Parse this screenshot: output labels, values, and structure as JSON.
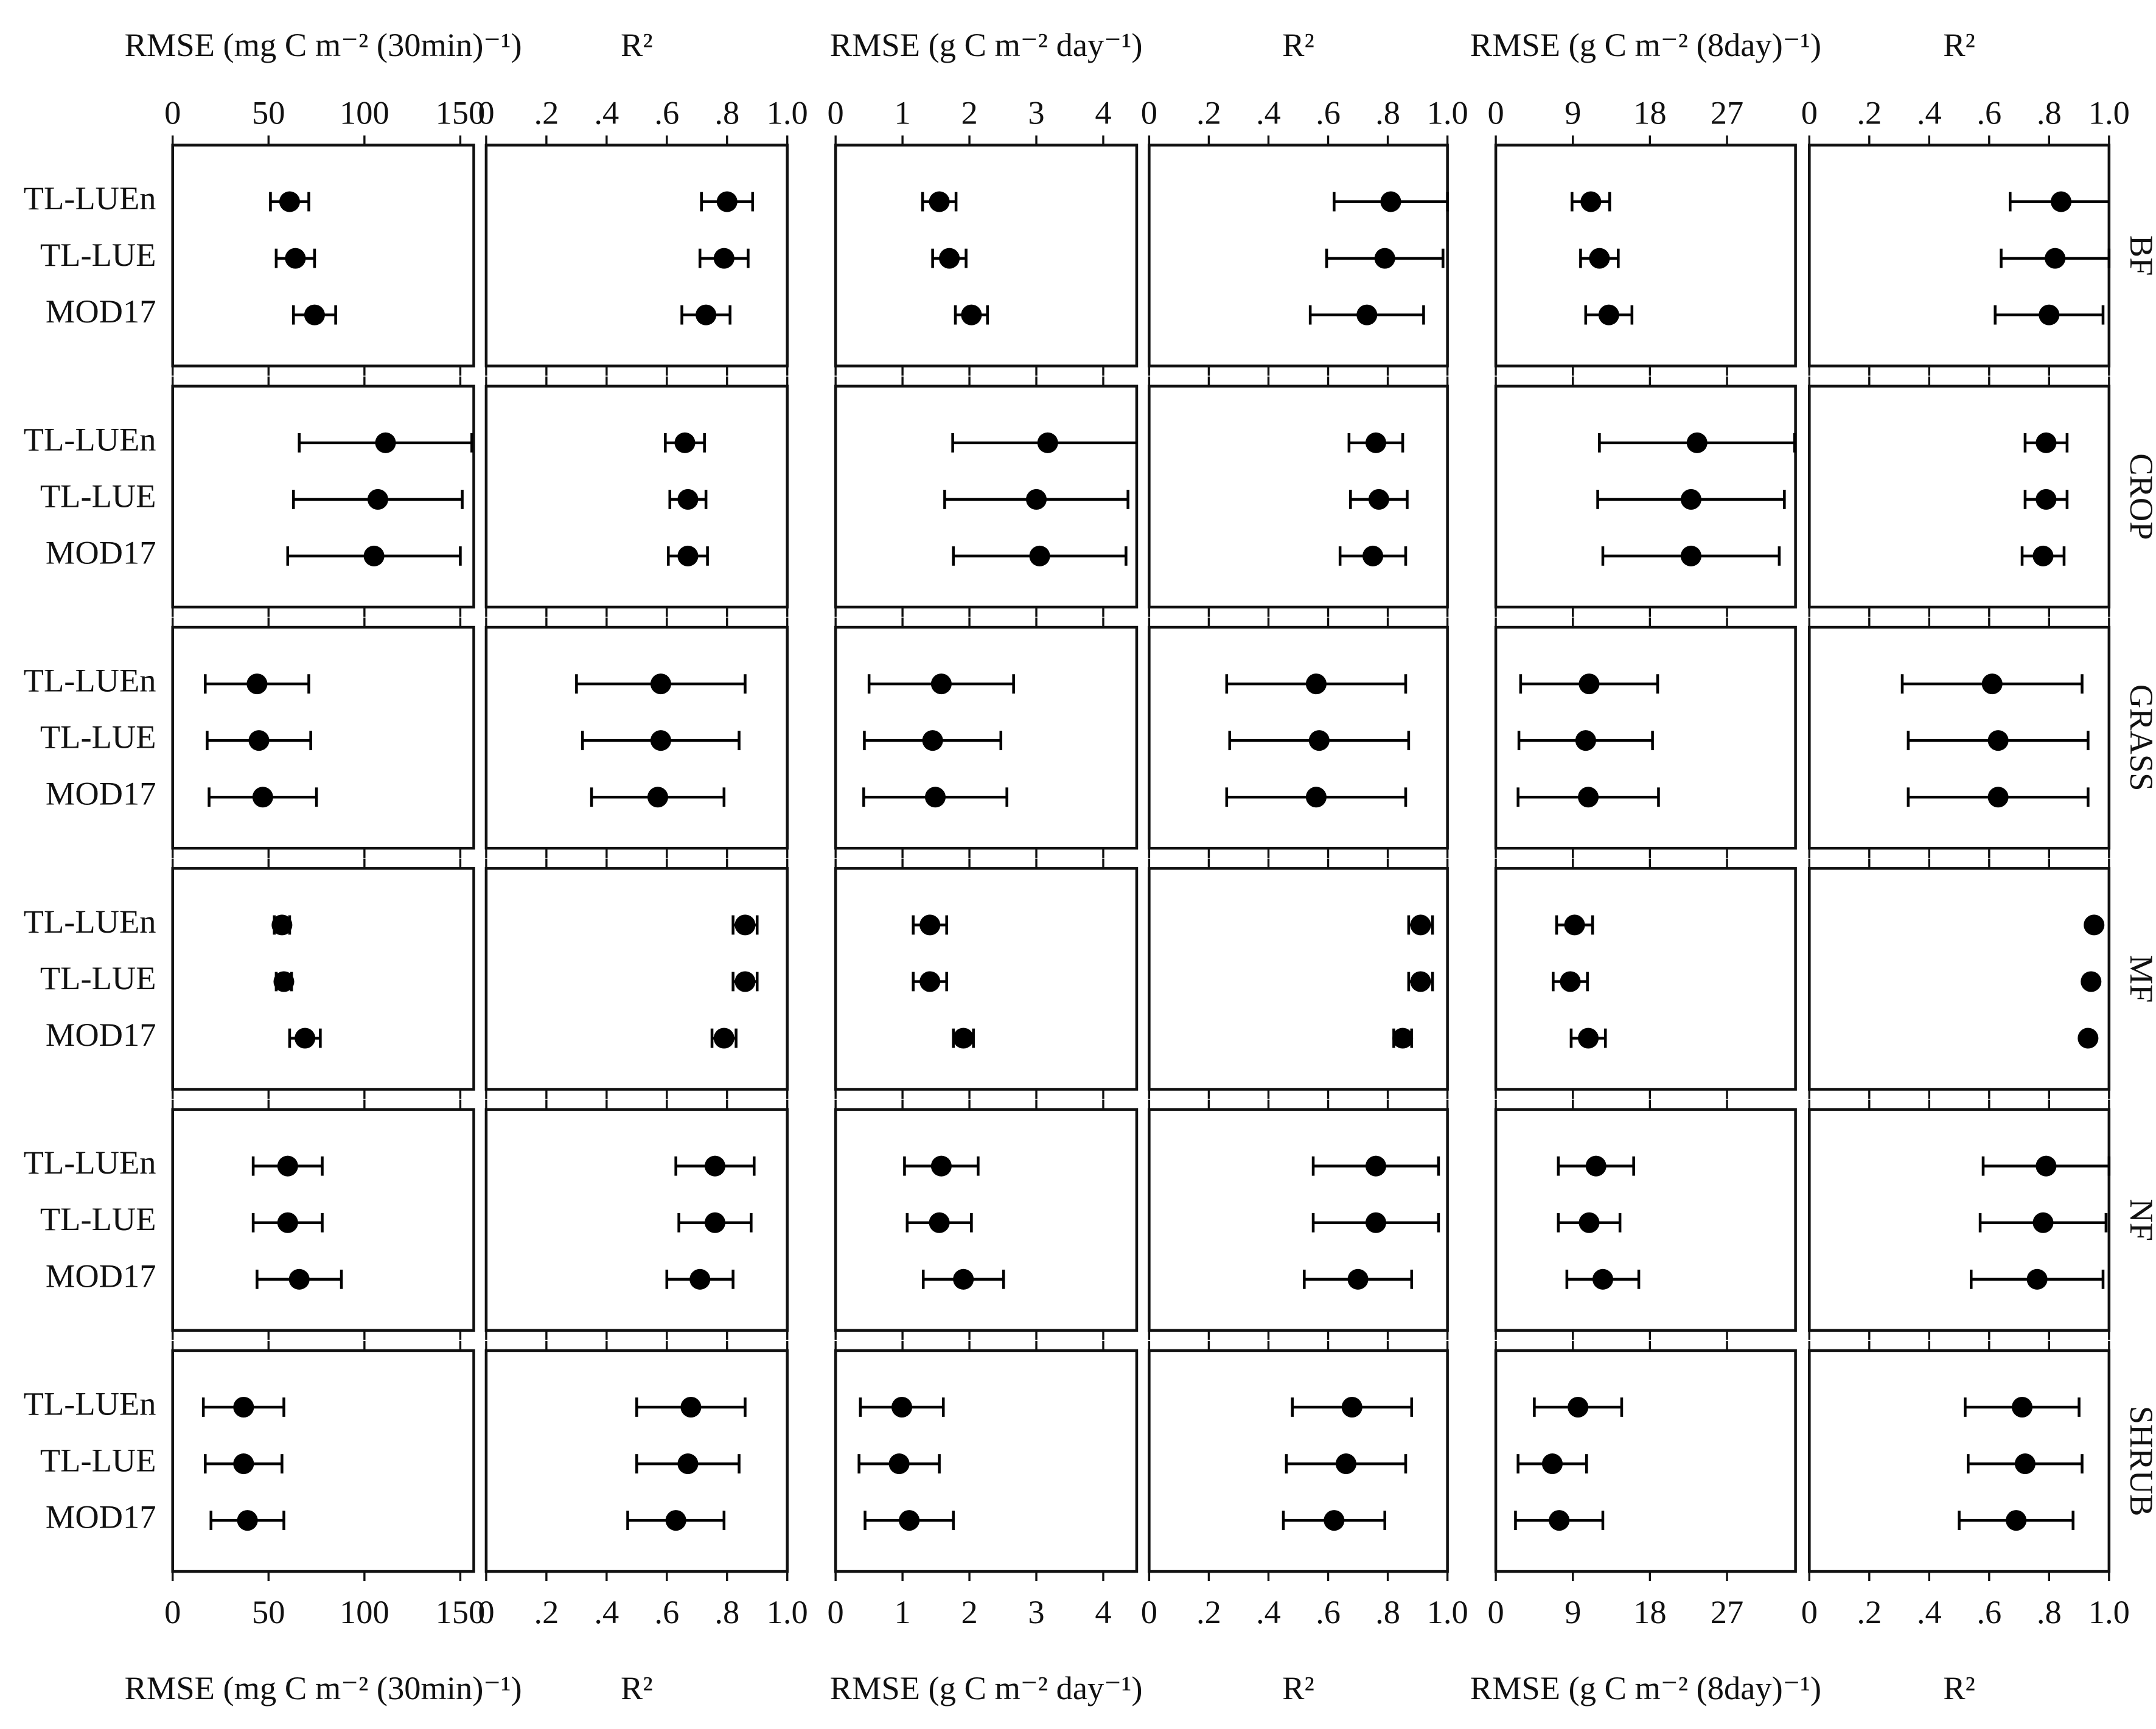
{
  "categories": [
    "TL-LUEn",
    "TL-LUE",
    "MOD17"
  ],
  "row_labels": [
    "BF",
    "CROP",
    "GRASS",
    "MF",
    "NF",
    "SHRUB"
  ],
  "chart_data": [
    {
      "type": "errorbar",
      "xlabel": "RMSE (mg C m⁻² (30min)⁻¹)",
      "xlim": [
        0,
        157
      ],
      "xticks": [
        0,
        50,
        100,
        150
      ],
      "color": "#000000",
      "series": [
        {
          "values": [
            61,
            64,
            74
          ],
          "errors": [
            10,
            10,
            11
          ]
        },
        {
          "values": [
            111,
            107,
            105
          ],
          "errors": [
            45,
            44,
            45
          ]
        },
        {
          "values": [
            44,
            45,
            47
          ],
          "errors": [
            27,
            27,
            28
          ]
        },
        {
          "values": [
            57,
            58,
            69
          ],
          "errors": [
            4,
            4,
            8
          ]
        },
        {
          "values": [
            60,
            60,
            66
          ],
          "errors": [
            18,
            18,
            22
          ]
        },
        {
          "values": [
            37,
            37,
            39
          ],
          "errors": [
            21,
            20,
            19
          ]
        }
      ]
    },
    {
      "type": "errorbar",
      "xlabel": "R²",
      "xlim": [
        0,
        1
      ],
      "xticks": [
        0,
        {
          "value": 0.2,
          "label": ".2"
        },
        {
          "value": 0.4,
          "label": ".4"
        },
        {
          "value": 0.6,
          "label": ".6"
        },
        {
          "value": 0.8,
          "label": ".8"
        },
        {
          "value": 1,
          "label": "1.0"
        }
      ],
      "color": "#000000",
      "series": [
        {
          "values": [
            0.8,
            0.79,
            0.73
          ],
          "errors": [
            0.085,
            0.08,
            0.08
          ]
        },
        {
          "values": [
            0.66,
            0.67,
            0.67
          ],
          "errors": [
            0.065,
            0.06,
            0.065
          ]
        },
        {
          "values": [
            0.58,
            0.58,
            0.57
          ],
          "errors": [
            0.28,
            0.26,
            0.22
          ]
        },
        {
          "values": [
            0.86,
            0.86,
            0.79
          ],
          "errors": [
            0.04,
            0.04,
            0.04
          ]
        },
        {
          "values": [
            0.76,
            0.76,
            0.71
          ],
          "errors": [
            0.13,
            0.12,
            0.11
          ]
        },
        {
          "values": [
            0.68,
            0.67,
            0.63
          ],
          "errors": [
            0.18,
            0.17,
            0.16
          ]
        }
      ]
    },
    {
      "type": "errorbar",
      "xlabel": "RMSE (g C m⁻² day⁻¹)",
      "xlim": [
        0,
        4.5
      ],
      "xticks": [
        0,
        1,
        2,
        3,
        4
      ],
      "color": "#000000",
      "series": [
        {
          "values": [
            1.55,
            1.7,
            2.03
          ],
          "errors": [
            0.25,
            0.25,
            0.24
          ]
        },
        {
          "values": [
            3.17,
            3.0,
            3.05
          ],
          "errors": [
            1.42,
            1.37,
            1.29
          ]
        },
        {
          "values": [
            1.58,
            1.45,
            1.49
          ],
          "errors": [
            1.08,
            1.02,
            1.07
          ]
        },
        {
          "values": [
            1.41,
            1.41,
            1.91
          ],
          "errors": [
            0.25,
            0.25,
            0.15
          ]
        },
        {
          "values": [
            1.58,
            1.55,
            1.91
          ],
          "errors": [
            0.55,
            0.48,
            0.6
          ]
        },
        {
          "values": [
            0.99,
            0.95,
            1.1
          ],
          "errors": [
            0.62,
            0.6,
            0.66
          ]
        }
      ]
    },
    {
      "type": "errorbar",
      "xlabel": "R²",
      "xlim": [
        0,
        1
      ],
      "xticks": [
        0,
        {
          "value": 0.2,
          "label": ".2"
        },
        {
          "value": 0.4,
          "label": ".4"
        },
        {
          "value": 0.6,
          "label": ".6"
        },
        {
          "value": 0.8,
          "label": ".8"
        },
        {
          "value": 1,
          "label": "1.0"
        }
      ],
      "color": "#000000",
      "series": [
        {
          "values": [
            0.81,
            0.79,
            0.73
          ],
          "errors": [
            0.19,
            0.195,
            0.19
          ]
        },
        {
          "values": [
            0.76,
            0.77,
            0.75
          ],
          "errors": [
            0.09,
            0.095,
            0.11
          ]
        },
        {
          "values": [
            0.56,
            0.57,
            0.56
          ],
          "errors": [
            0.3,
            0.3,
            0.3
          ]
        },
        {
          "values": [
            0.91,
            0.91,
            0.85
          ],
          "errors": [
            0.04,
            0.04,
            0.03
          ]
        },
        {
          "values": [
            0.76,
            0.76,
            0.7
          ],
          "errors": [
            0.21,
            0.21,
            0.18
          ]
        },
        {
          "values": [
            0.68,
            0.66,
            0.62
          ],
          "errors": [
            0.2,
            0.2,
            0.17
          ]
        }
      ]
    },
    {
      "type": "errorbar",
      "xlabel": "RMSE (g C m⁻² (8day)⁻¹)",
      "xlim": [
        0,
        35
      ],
      "xticks": [
        0,
        9,
        18,
        27
      ],
      "color": "#000000",
      "series": [
        {
          "values": [
            11.1,
            12.1,
            13.2
          ],
          "errors": [
            2.2,
            2.2,
            2.7
          ]
        },
        {
          "values": [
            23.5,
            22.8,
            22.8
          ],
          "errors": [
            11.4,
            10.9,
            10.3
          ]
        },
        {
          "values": [
            10.9,
            10.5,
            10.8
          ],
          "errors": [
            8,
            7.8,
            8.2
          ]
        },
        {
          "values": [
            9.2,
            8.7,
            10.8
          ],
          "errors": [
            2.1,
            2,
            2
          ]
        },
        {
          "values": [
            11.7,
            10.9,
            12.5
          ],
          "errors": [
            4.4,
            3.6,
            4.2
          ]
        },
        {
          "values": [
            9.6,
            6.6,
            7.4
          ],
          "errors": [
            5.1,
            4,
            5.1
          ]
        }
      ]
    },
    {
      "type": "errorbar",
      "xlabel": "R²",
      "xlim": [
        0,
        1
      ],
      "xticks": [
        0,
        {
          "value": 0.2,
          "label": ".2"
        },
        {
          "value": 0.4,
          "label": ".4"
        },
        {
          "value": 0.6,
          "label": ".6"
        },
        {
          "value": 0.8,
          "label": ".8"
        },
        {
          "value": 1,
          "label": "1.0"
        }
      ],
      "color": "#000000",
      "series": [
        {
          "values": [
            0.84,
            0.82,
            0.8
          ],
          "errors": [
            0.17,
            0.18,
            0.18
          ]
        },
        {
          "values": [
            0.79,
            0.79,
            0.78
          ],
          "errors": [
            0.07,
            0.07,
            0.07
          ]
        },
        {
          "values": [
            0.61,
            0.63,
            0.63
          ],
          "errors": [
            0.3,
            0.3,
            0.3
          ]
        },
        {
          "values": [
            0.95,
            0.94,
            0.93
          ],
          "errors": [
            0,
            0,
            0
          ]
        },
        {
          "values": [
            0.79,
            0.78,
            0.76
          ],
          "errors": [
            0.21,
            0.21,
            0.22
          ]
        },
        {
          "values": [
            0.71,
            0.72,
            0.69
          ],
          "errors": [
            0.19,
            0.19,
            0.19
          ]
        }
      ]
    }
  ]
}
